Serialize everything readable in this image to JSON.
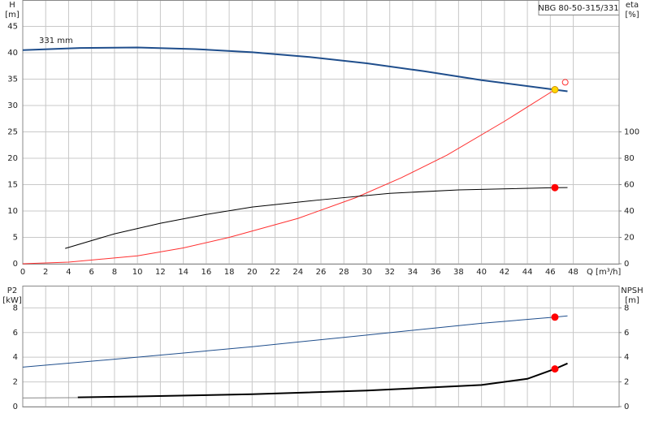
{
  "chart_data": [
    {
      "type": "line",
      "title": "NBG 80-50-315/331",
      "annotation": "331 mm",
      "ylabel": "H",
      "yunit": "[m]",
      "y2label": "eta",
      "y2unit": "[%]",
      "xlabel": "Q [m³/h]",
      "xlim": [
        0,
        52
      ],
      "xticks": [
        0,
        2,
        4,
        6,
        8,
        10,
        12,
        14,
        16,
        18,
        20,
        22,
        24,
        26,
        28,
        30,
        32,
        34,
        36,
        38,
        40,
        42,
        44,
        46,
        48
      ],
      "ylim": [
        0,
        50
      ],
      "yticks": [
        0,
        5,
        10,
        15,
        20,
        25,
        30,
        35,
        40,
        45
      ],
      "y2lim": [
        0,
        200
      ],
      "y2ticks": [
        0,
        20,
        40,
        60,
        80,
        100
      ],
      "xtick_labels": true,
      "series": [
        {
          "style": "line",
          "color": "#1f4e8c",
          "width": 2,
          "x": [
            0,
            5,
            10,
            15,
            20,
            25,
            30,
            35,
            40,
            46.4,
            47.5
          ],
          "values": [
            40.5,
            40.9,
            41.0,
            40.7,
            40.1,
            39.2,
            38.0,
            36.5,
            34.8,
            33.0,
            32.7
          ]
        },
        {
          "style": "line",
          "color": "#ff3030",
          "width": 1,
          "x": [
            0,
            4,
            10,
            14,
            18,
            24,
            29,
            33,
            37,
            42,
            46.4
          ],
          "values": [
            0,
            0.3,
            1.5,
            3,
            5,
            8.6,
            12.5,
            16.3,
            20.6,
            27,
            33
          ]
        },
        {
          "style": "line",
          "color": "#000000",
          "width": 1,
          "axis": "y2",
          "x": [
            3.7,
            8,
            12,
            16,
            20,
            26,
            32,
            38,
            46.4,
            47.5
          ],
          "values": [
            11.6,
            22.7,
            30.7,
            37.4,
            43,
            48.5,
            53.4,
            56,
            57.7,
            57.8
          ]
        },
        {
          "style": "dot",
          "color": "#ff0000",
          "axis": "y2",
          "x": [
            46.4
          ],
          "values": [
            57.7
          ]
        },
        {
          "style": "ring",
          "color": "#ff3030",
          "x": [
            47.3
          ],
          "values": [
            34.4
          ]
        },
        {
          "style": "dot",
          "color": "#ffd700",
          "x": [
            46.4
          ],
          "values": [
            33
          ]
        }
      ]
    },
    {
      "type": "line",
      "ylabel": "P2",
      "yunit": "[kW]",
      "y2label": "NPSH",
      "y2unit": "[m]",
      "xlim": [
        0,
        52
      ],
      "xticks": [
        0,
        2,
        4,
        6,
        8,
        10,
        12,
        14,
        16,
        18,
        20,
        22,
        24,
        26,
        28,
        30,
        32,
        34,
        36,
        38,
        40,
        42,
        44,
        46,
        48
      ],
      "ylim": [
        0,
        9.8
      ],
      "yticks": [
        0,
        2,
        4,
        6,
        8
      ],
      "y2lim": [
        0,
        9.8
      ],
      "y2ticks": [
        0,
        2,
        4,
        6,
        8
      ],
      "xtick_labels": false,
      "series": [
        {
          "style": "line",
          "color": "#1f4e8c",
          "width": 1,
          "x": [
            0,
            10,
            20,
            30,
            40,
            46.4,
            47.5
          ],
          "values": [
            3.2,
            4.0,
            4.85,
            5.8,
            6.75,
            7.25,
            7.35
          ]
        },
        {
          "style": "line",
          "color": "#888888",
          "width": 1,
          "axis": "y2",
          "x": [
            0,
            4.8
          ],
          "values": [
            0.7,
            0.72
          ]
        },
        {
          "style": "line",
          "color": "#000000",
          "width": 2,
          "axis": "y2",
          "x": [
            4.8,
            10,
            20,
            30,
            40,
            44,
            46.4,
            47.5
          ],
          "values": [
            0.75,
            0.82,
            1.0,
            1.3,
            1.75,
            2.25,
            3.05,
            3.5
          ]
        },
        {
          "style": "dot",
          "color": "#ff0000",
          "x": [
            46.4
          ],
          "values": [
            7.25
          ]
        },
        {
          "style": "dot",
          "color": "#ff0000",
          "axis": "y2",
          "x": [
            46.4
          ],
          "values": [
            3.05
          ]
        }
      ]
    }
  ]
}
